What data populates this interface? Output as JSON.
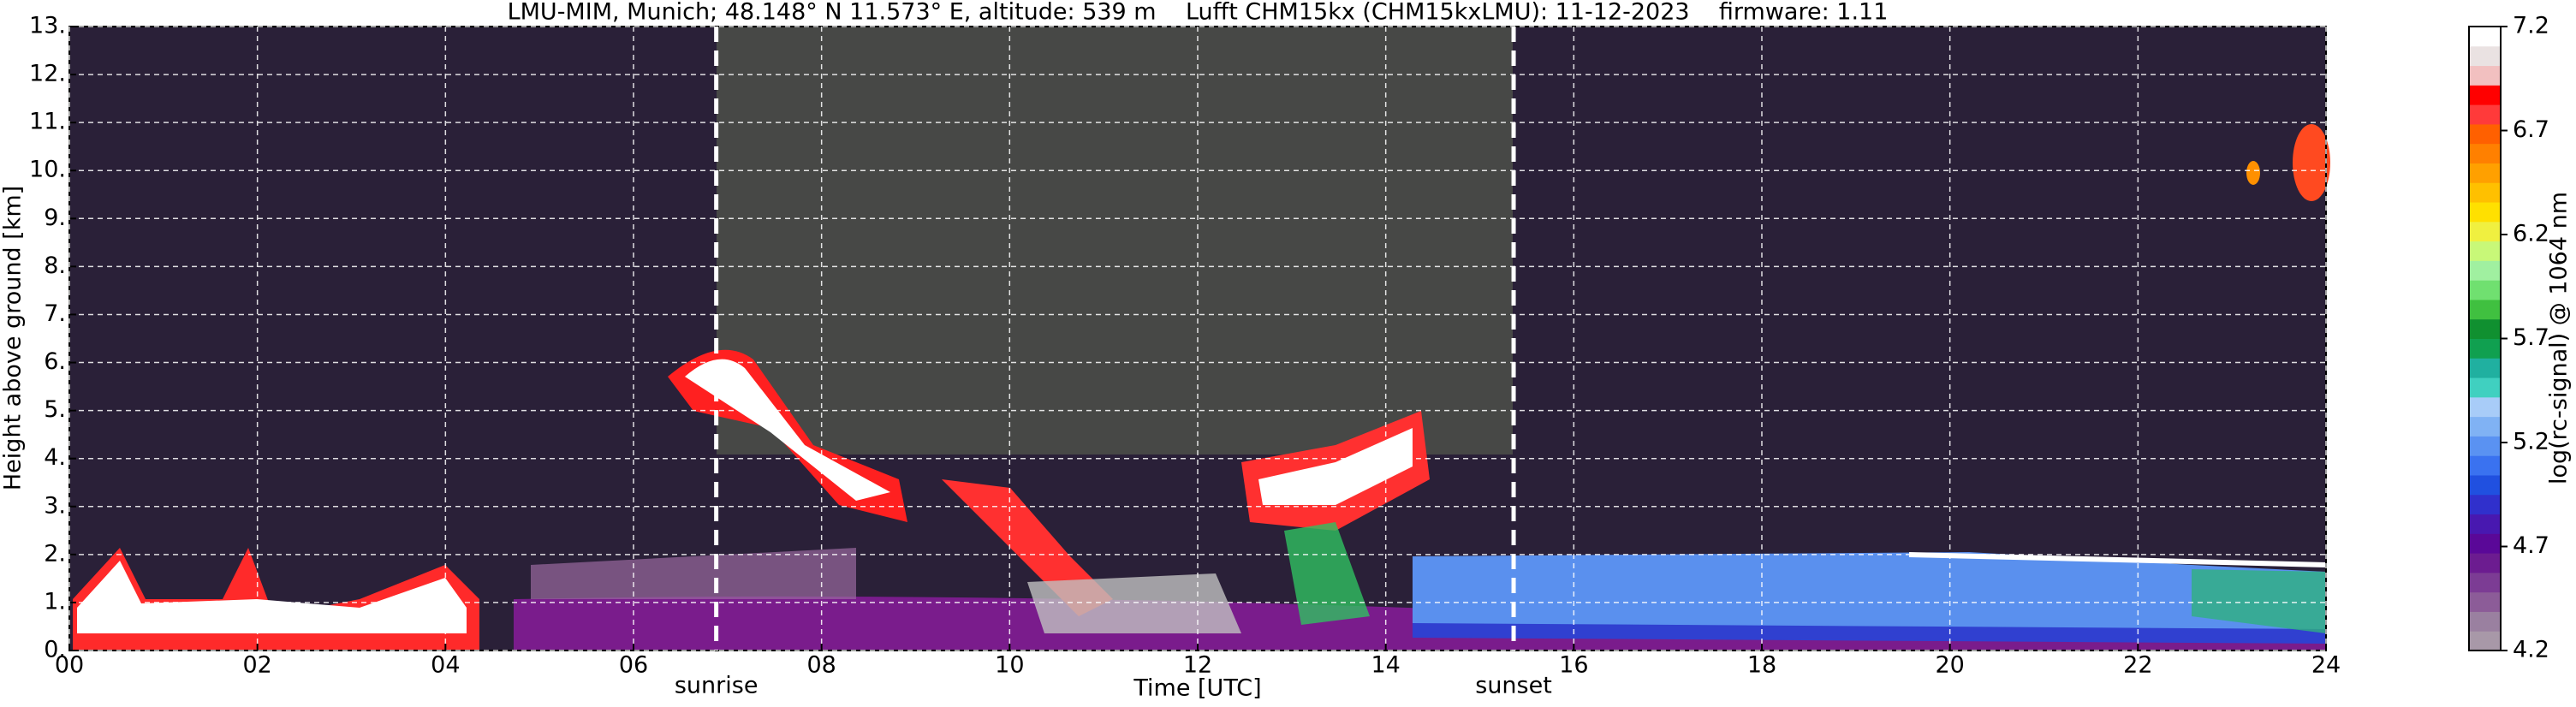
{
  "chart_data": {
    "type": "heatmap",
    "title": "LMU-MIM, Munich; 48.148° N 11.573° E, altitude: 539 m    Lufft CHM15kx (CHM15kxLMU): 11-12-2023    firmware: 1.11",
    "xlabel": "Time [UTC]",
    "ylabel": "Height above ground [km]",
    "xlim": [
      0,
      24
    ],
    "xticks": [
      {
        "value": 0,
        "label": "00"
      },
      {
        "value": 2,
        "label": "02"
      },
      {
        "value": 4,
        "label": "04"
      },
      {
        "value": 6,
        "label": "06"
      },
      {
        "value": 8,
        "label": "08"
      },
      {
        "value": 10,
        "label": "10"
      },
      {
        "value": 12,
        "label": "12"
      },
      {
        "value": 14,
        "label": "14"
      },
      {
        "value": 16,
        "label": "16"
      },
      {
        "value": 18,
        "label": "18"
      },
      {
        "value": 20,
        "label": "20"
      },
      {
        "value": 22,
        "label": "22"
      },
      {
        "value": 24,
        "label": "24"
      }
    ],
    "ylim": [
      0,
      13
    ],
    "yticks": [
      {
        "value": 0,
        "label": "0."
      },
      {
        "value": 1,
        "label": "1."
      },
      {
        "value": 2,
        "label": "2."
      },
      {
        "value": 3,
        "label": "3."
      },
      {
        "value": 4,
        "label": "4."
      },
      {
        "value": 5,
        "label": "5."
      },
      {
        "value": 6,
        "label": "6."
      },
      {
        "value": 7,
        "label": "7."
      },
      {
        "value": 8,
        "label": "8."
      },
      {
        "value": 9,
        "label": "9."
      },
      {
        "value": 10,
        "label": "10."
      },
      {
        "value": 11,
        "label": "11."
      },
      {
        "value": 12,
        "label": "12."
      },
      {
        "value": 13,
        "label": "13."
      }
    ],
    "grid": true,
    "annotations": [
      {
        "text": "sunrise",
        "x": 6.88
      },
      {
        "text": "sunset",
        "x": 15.36
      }
    ],
    "colorbar": {
      "label": "log(rc-signal) @ 1064 nm",
      "clim": [
        4.2,
        7.2
      ],
      "ticks": [
        4.2,
        4.7,
        5.2,
        5.7,
        6.2,
        6.7,
        7.2
      ],
      "colors": [
        "#a898a8",
        "#9a80a0",
        "#8c5c98",
        "#7c3c94",
        "#6c1c90",
        "#5a0898",
        "#4818b0",
        "#3030cc",
        "#2050e0",
        "#3a72f0",
        "#5a92f2",
        "#80b2f4",
        "#a8ccf8",
        "#40d0c0",
        "#20b0a0",
        "#10a050",
        "#109030",
        "#40c040",
        "#70e070",
        "#a0f0a0",
        "#c8f878",
        "#f0f040",
        "#ffe000",
        "#ffc000",
        "#ffa000",
        "#ff8000",
        "#ff6000",
        "#ff3a3a",
        "#ff0000",
        "#f2c0c0",
        "#eae2e2",
        "#ffffff"
      ]
    }
  }
}
